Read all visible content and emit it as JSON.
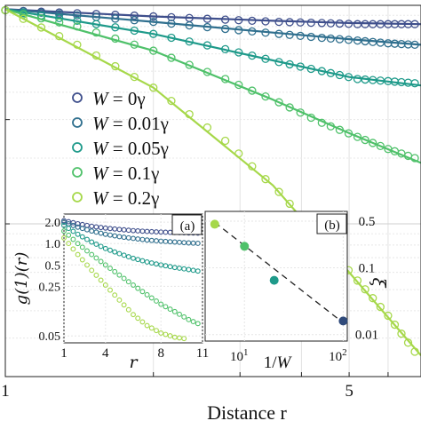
{
  "chart_data": [
    {
      "type": "scatter",
      "panel": "main",
      "xlabel": "Distance r",
      "ylabel": "",
      "x_scale": "log",
      "y_scale": "log",
      "xlim": [
        1,
        7
      ],
      "ylim": [
        0.02,
        1
      ],
      "x_tick_labels": [
        "1",
        "5"
      ],
      "grid": true,
      "legend": "center-left",
      "series": [
        {
          "name": "W = 0γ",
          "legend_label": {
            "var": "W",
            "val": "0γ"
          },
          "color": "#3f4f8c",
          "x": [
            1.0,
            1.4,
            2.0,
            2.8,
            3.6,
            4.4,
            5.2,
            6.0,
            6.8
          ],
          "y": [
            0.95,
            0.92,
            0.89,
            0.86,
            0.84,
            0.83,
            0.82,
            0.82,
            0.82
          ],
          "fit": {
            "x": [
              1.0,
              2.0,
              3.5,
              5.0,
              7.0
            ],
            "y": [
              0.96,
              0.89,
              0.85,
              0.83,
              0.82
            ]
          }
        },
        {
          "name": "W = 0.01γ",
          "legend_label": {
            "var": "W",
            "val": "0.01γ"
          },
          "color": "#2f6f8e",
          "x": [
            1.0,
            1.4,
            2.0,
            2.8,
            3.6,
            4.4,
            5.2,
            6.0,
            6.8
          ],
          "y": [
            0.95,
            0.9,
            0.84,
            0.78,
            0.74,
            0.71,
            0.69,
            0.67,
            0.66
          ],
          "fit": {
            "x": [
              1.0,
              2.0,
              3.5,
              5.0,
              7.0
            ],
            "y": [
              0.96,
              0.84,
              0.75,
              0.7,
              0.66
            ]
          }
        },
        {
          "name": "W = 0.05γ",
          "legend_label": {
            "var": "W",
            "val": "0.05γ"
          },
          "color": "#1e9a8a",
          "x": [
            1.0,
            1.4,
            2.0,
            2.8,
            3.6,
            4.4,
            5.2,
            6.0,
            6.8
          ],
          "y": [
            0.95,
            0.85,
            0.74,
            0.63,
            0.55,
            0.5,
            0.46,
            0.45,
            0.44
          ],
          "fit": {
            "x": [
              1.0,
              2.0,
              3.5,
              5.0,
              7.0
            ],
            "y": [
              0.96,
              0.74,
              0.56,
              0.47,
              0.43
            ]
          }
        },
        {
          "name": "W = 0.1γ",
          "legend_label": {
            "var": "W",
            "val": "0.1γ"
          },
          "color": "#4fc16a",
          "x": [
            1.0,
            1.4,
            2.0,
            2.8,
            3.6,
            4.4,
            5.2,
            6.0,
            6.8
          ],
          "y": [
            0.95,
            0.8,
            0.62,
            0.46,
            0.36,
            0.29,
            0.25,
            0.22,
            0.2
          ],
          "fit": {
            "x": [
              1.0,
              2.0,
              3.5,
              5.0,
              7.0
            ],
            "y": [
              0.96,
              0.62,
              0.37,
              0.26,
              0.19
            ]
          }
        },
        {
          "name": "W = 0.2γ",
          "legend_label": {
            "var": "W",
            "val": "0.2γ"
          },
          "color": "#a6d84a",
          "x": [
            1.0,
            1.4,
            2.0,
            2.8,
            3.6,
            4.4,
            5.2,
            6.0,
            6.8
          ],
          "y": [
            0.95,
            0.66,
            0.42,
            0.24,
            0.14,
            0.085,
            0.055,
            0.038,
            0.026
          ],
          "fit": {
            "x": [
              1.0,
              2.0,
              3.5,
              5.0,
              7.0
            ],
            "y": [
              0.96,
              0.42,
              0.15,
              0.06,
              0.025
            ]
          }
        }
      ]
    },
    {
      "type": "scatter",
      "panel": "(a)",
      "xlabel": "r",
      "ylabel": "g(1)(r)",
      "x_scale": "linear",
      "y_scale": "log",
      "xlim": [
        1,
        11
      ],
      "ylim": [
        0.04,
        2.6
      ],
      "x_ticks": [
        1,
        4,
        8,
        11
      ],
      "y_ticks": [
        2.0,
        1.0,
        0.5,
        0.25,
        0.05
      ],
      "y_tick_labels": [
        "2.0",
        "1.0",
        "0.5",
        "0.25",
        "0.05"
      ],
      "grid": true,
      "series": [
        {
          "color": "#3f4f8c",
          "x": [
            1,
            2,
            3,
            4,
            5,
            6,
            7,
            8,
            9,
            10,
            11
          ],
          "y": [
            2.1,
            1.9,
            1.75,
            1.65,
            1.58,
            1.52,
            1.48,
            1.45,
            1.43,
            1.41,
            1.4
          ]
        },
        {
          "color": "#2f6f8e",
          "x": [
            1,
            2,
            3,
            4,
            5,
            6,
            7,
            8,
            9,
            10,
            11
          ],
          "y": [
            2.0,
            1.7,
            1.5,
            1.35,
            1.25,
            1.18,
            1.12,
            1.08,
            1.05,
            1.02,
            1.0
          ]
        },
        {
          "color": "#1e9a8a",
          "x": [
            1,
            2,
            3,
            4,
            5,
            6,
            7,
            8,
            9,
            10,
            11
          ],
          "y": [
            1.8,
            1.35,
            1.05,
            0.85,
            0.72,
            0.62,
            0.55,
            0.5,
            0.46,
            0.43,
            0.4
          ]
        },
        {
          "color": "#4fc16a",
          "x": [
            1,
            2,
            3,
            4,
            5,
            6,
            7,
            8,
            9,
            10,
            11
          ],
          "y": [
            1.5,
            1.0,
            0.7,
            0.5,
            0.36,
            0.26,
            0.19,
            0.14,
            0.11,
            0.085,
            0.07
          ]
        },
        {
          "color": "#a6d84a",
          "x": [
            1,
            2,
            3,
            4,
            5,
            6,
            7,
            8,
            9,
            10
          ],
          "y": [
            1.2,
            0.7,
            0.42,
            0.26,
            0.16,
            0.1,
            0.07,
            0.055,
            0.048,
            0.045
          ]
        }
      ]
    },
    {
      "type": "scatter",
      "panel": "(b)",
      "xlabel": "1/W",
      "ylabel": "ξ",
      "x_scale": "log",
      "y_scale": "log",
      "xlim": [
        4,
        110
      ],
      "ylim": [
        0.008,
        0.7
      ],
      "x_ticks": [
        10,
        100
      ],
      "x_tick_labels": [
        "10^1",
        "10^2"
      ],
      "y_ticks": [
        0.5,
        0.1,
        0.01
      ],
      "y_tick_labels": [
        "0.5",
        "0.1",
        "0.01"
      ],
      "grid": true,
      "points": [
        {
          "x": 5,
          "y": 0.45,
          "color": "#a6d84a"
        },
        {
          "x": 10,
          "y": 0.21,
          "color": "#4fc16a"
        },
        {
          "x": 20,
          "y": 0.065,
          "color": "#1e9a8a"
        },
        {
          "x": 100,
          "y": 0.016,
          "color": "#2f4a7a"
        }
      ],
      "fit_line": {
        "x": [
          5,
          100
        ],
        "y": [
          0.48,
          0.015
        ],
        "style": "dashed"
      }
    }
  ]
}
